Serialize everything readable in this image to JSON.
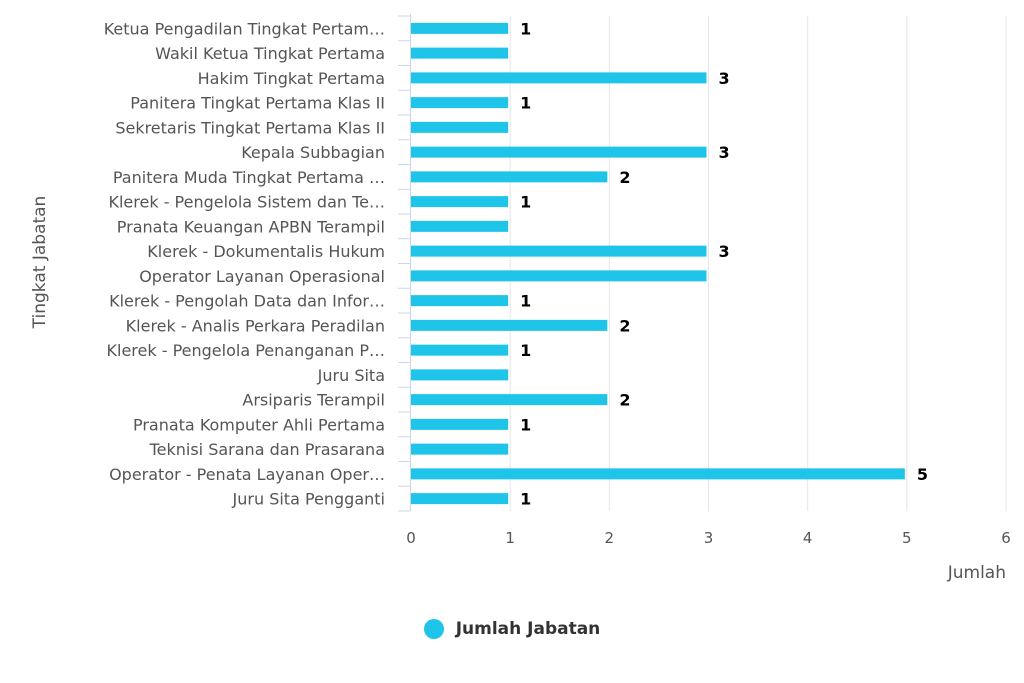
{
  "chart_data": {
    "type": "bar",
    "orientation": "horizontal",
    "categories": [
      "Ketua Pengadilan Tingkat Pertam…",
      "Wakil Ketua Tingkat Pertama",
      "Hakim Tingkat Pertama",
      "Panitera Tingkat Pertama Klas II",
      "Sekretaris Tingkat Pertama Klas II",
      "Kepala Subbagian",
      "Panitera Muda Tingkat Pertama …",
      "Klerek - Pengelola Sistem dan Te…",
      "Pranata Keuangan APBN Terampil",
      "Klerek - Dokumentalis Hukum",
      "Operator Layanan Operasional",
      "Klerek - Pengolah Data dan Infor…",
      "Klerek - Analis Perkara Peradilan",
      "Klerek - Pengelola Penanganan P…",
      "Juru Sita",
      "Arsiparis Terampil",
      "Pranata Komputer Ahli Pertama",
      "Teknisi Sarana dan Prasarana",
      "Operator - Penata Layanan Oper…",
      "Juru Sita Pengganti"
    ],
    "series": [
      {
        "name": "Jumlah Jabatan",
        "values": [
          1,
          1,
          3,
          1,
          1,
          3,
          2,
          1,
          1,
          3,
          3,
          1,
          2,
          1,
          1,
          2,
          1,
          1,
          5,
          1
        ],
        "data_labels": [
          "1",
          "",
          "3",
          "1",
          "",
          "3",
          "2",
          "1",
          "",
          "3",
          "",
          "1",
          "2",
          "1",
          "",
          "2",
          "1",
          "",
          "5",
          "1"
        ]
      }
    ],
    "xlabel": "Jumlah",
    "ylabel": "Tingkat Jabatan",
    "xlim": [
      0,
      6
    ],
    "xticks": [
      "0",
      "1",
      "2",
      "3",
      "4",
      "5",
      "6"
    ],
    "grid": true,
    "legend_position": "bottom-center",
    "colors": {
      "bar": "#1ec5e8",
      "grid": "#e6e6e6",
      "axis": "#ccd6eb"
    }
  }
}
